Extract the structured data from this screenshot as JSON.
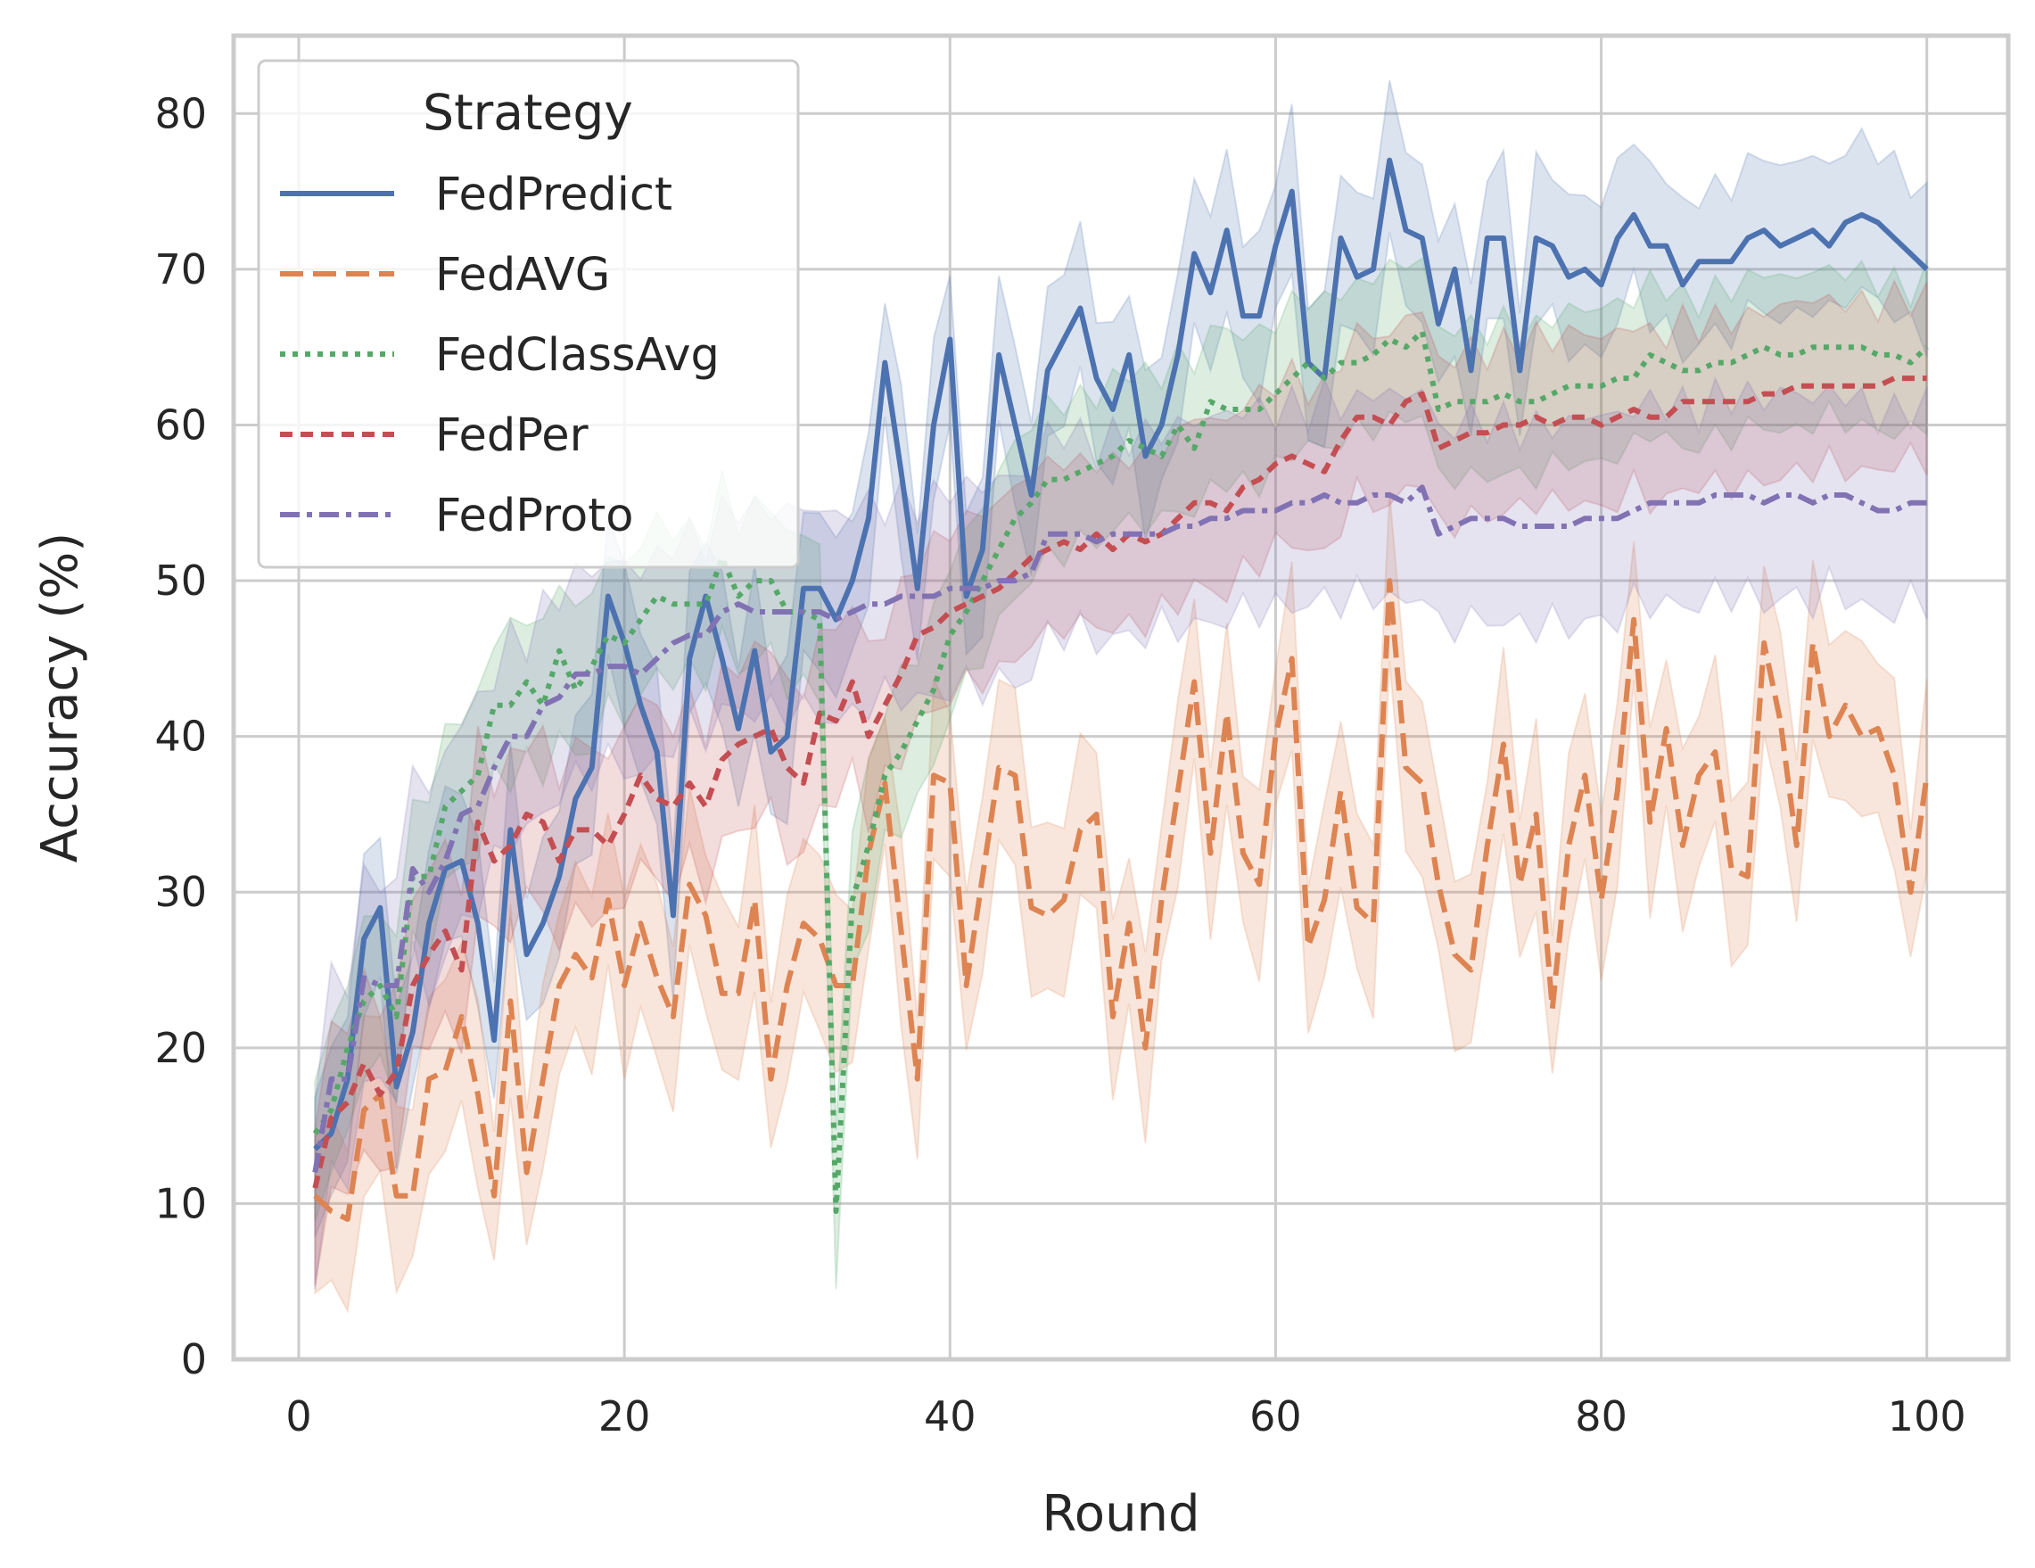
{
  "chart_data": {
    "type": "line",
    "title": "",
    "xlabel": "Round",
    "ylabel": "Accuracy (%)",
    "xlim": [
      -4,
      105
    ],
    "ylim": [
      0,
      85
    ],
    "xticks": [
      0,
      20,
      40,
      60,
      80,
      100
    ],
    "yticks": [
      0,
      10,
      20,
      30,
      40,
      50,
      60,
      70,
      80
    ],
    "grid": true,
    "legend": {
      "title": "Strategy",
      "placement": "top-left"
    },
    "series": [
      {
        "name": "FedPredict",
        "color": "#4c72b0",
        "dash": "solid",
        "band": 4.5,
        "x": [
          1,
          2,
          3,
          4,
          5,
          6,
          7,
          8,
          9,
          10,
          11,
          12,
          13,
          14,
          15,
          16,
          17,
          18,
          19,
          20,
          21,
          22,
          23,
          24,
          25,
          26,
          27,
          28,
          29,
          30,
          31,
          32,
          33,
          34,
          35,
          36,
          37,
          38,
          39,
          40,
          41,
          42,
          43,
          44,
          45,
          46,
          47,
          48,
          49,
          50,
          51,
          52,
          53,
          54,
          55,
          56,
          57,
          58,
          59,
          60,
          61,
          62,
          63,
          64,
          65,
          66,
          67,
          68,
          69,
          70,
          71,
          72,
          73,
          74,
          75,
          76,
          77,
          78,
          79,
          80,
          81,
          82,
          83,
          84,
          85,
          86,
          87,
          88,
          89,
          90,
          91,
          92,
          93,
          94,
          95,
          96,
          97,
          98,
          99,
          100
        ],
        "values": [
          13.5,
          14.5,
          18,
          27,
          29,
          17.5,
          21,
          28,
          31.5,
          32,
          28,
          20.5,
          34,
          26,
          28,
          31,
          36,
          38,
          49,
          46,
          42,
          39,
          28.5,
          45,
          49,
          45,
          40.5,
          45.5,
          39,
          40,
          49.5,
          49.5,
          47.5,
          50,
          54,
          64,
          57,
          49.5,
          60,
          65.5,
          49,
          52,
          64.5,
          60,
          55.5,
          63.5,
          65.5,
          67.5,
          63,
          61,
          64.5,
          58,
          60,
          64.5,
          71,
          68.5,
          72.5,
          67,
          67,
          71.5,
          75,
          64,
          63,
          72,
          69.5,
          70,
          77,
          72.5,
          72,
          66.5,
          70,
          63.5,
          72,
          72,
          63.5,
          72,
          71.5,
          69.5,
          70,
          69,
          72,
          73.5,
          71.5,
          71.5,
          69,
          70.5,
          70.5,
          70.5,
          72,
          72.5,
          71.5,
          72,
          72.5,
          71.5,
          73,
          73.5,
          73,
          72,
          71,
          70
        ]
      },
      {
        "name": "FedAVG",
        "color": "#dd8452",
        "dash": "long-dash",
        "band": 5,
        "x": [
          1,
          2,
          3,
          4,
          5,
          6,
          7,
          8,
          9,
          10,
          11,
          12,
          13,
          14,
          15,
          16,
          17,
          18,
          19,
          20,
          21,
          22,
          23,
          24,
          25,
          26,
          27,
          28,
          29,
          30,
          31,
          32,
          33,
          34,
          35,
          36,
          37,
          38,
          39,
          40,
          41,
          42,
          43,
          44,
          45,
          46,
          47,
          48,
          49,
          50,
          51,
          52,
          53,
          54,
          55,
          56,
          57,
          58,
          59,
          60,
          61,
          62,
          63,
          64,
          65,
          66,
          67,
          68,
          69,
          70,
          71,
          72,
          73,
          74,
          75,
          76,
          77,
          78,
          79,
          80,
          81,
          82,
          83,
          84,
          85,
          86,
          87,
          88,
          89,
          90,
          91,
          92,
          93,
          94,
          95,
          96,
          97,
          98,
          99,
          100
        ],
        "values": [
          10.5,
          9.5,
          9,
          16,
          17,
          10.5,
          10.5,
          18,
          18.5,
          22,
          17,
          10.5,
          23,
          12,
          18,
          24,
          26,
          24.5,
          29.5,
          24,
          28,
          24.5,
          22,
          30.5,
          28.5,
          23.5,
          23.5,
          29.5,
          18,
          24,
          28,
          27,
          24,
          24,
          32.5,
          37,
          27.5,
          18,
          37.5,
          37,
          24,
          31,
          38,
          37.5,
          29,
          28.5,
          29.5,
          34,
          35,
          22,
          28,
          20,
          29.5,
          36.5,
          43.5,
          32.5,
          41.5,
          32.5,
          30.5,
          40,
          45,
          26.5,
          29.5,
          36.5,
          29,
          28,
          50,
          38,
          37,
          30.5,
          26,
          25,
          33,
          39.5,
          30.5,
          35,
          22.5,
          33,
          37.5,
          29.5,
          36.5,
          47.5,
          34.5,
          40.5,
          33,
          37.5,
          39,
          31.5,
          31,
          46,
          41,
          33,
          46,
          40,
          42,
          40,
          40.5,
          37.5,
          30,
          37.5
        ]
      },
      {
        "name": "FedClassAvg",
        "color": "#55a868",
        "dash": "dotted",
        "band": 4.5,
        "x": [
          1,
          2,
          3,
          4,
          5,
          6,
          7,
          8,
          9,
          10,
          11,
          12,
          13,
          14,
          15,
          16,
          17,
          18,
          19,
          20,
          21,
          22,
          23,
          24,
          25,
          26,
          27,
          28,
          29,
          30,
          31,
          32,
          33,
          34,
          35,
          36,
          37,
          38,
          39,
          40,
          41,
          42,
          43,
          44,
          45,
          46,
          47,
          48,
          49,
          50,
          51,
          52,
          53,
          54,
          55,
          56,
          57,
          58,
          59,
          60,
          61,
          62,
          63,
          64,
          65,
          66,
          67,
          68,
          69,
          70,
          71,
          72,
          73,
          74,
          75,
          76,
          77,
          78,
          79,
          80,
          81,
          82,
          83,
          84,
          85,
          86,
          87,
          88,
          89,
          90,
          91,
          92,
          93,
          94,
          95,
          96,
          97,
          98,
          99,
          100
        ],
        "values": [
          14.5,
          16,
          20,
          23,
          24,
          22,
          31,
          31,
          35.5,
          36.5,
          37.5,
          42,
          42,
          43.5,
          42,
          45.5,
          43,
          44.5,
          46.5,
          46,
          47.5,
          49,
          48.5,
          48.5,
          48.5,
          51.5,
          49,
          50,
          50,
          48,
          48,
          47.5,
          9.5,
          29.5,
          33,
          37.5,
          39,
          41,
          43,
          46.5,
          48,
          50,
          52,
          54,
          55,
          56.5,
          56.5,
          57,
          57.5,
          58,
          59,
          58.5,
          58,
          60,
          58.5,
          61.5,
          61,
          61,
          61,
          62,
          63,
          64,
          63,
          64,
          64,
          64.5,
          65.5,
          65,
          66,
          61,
          61.5,
          61.5,
          61.5,
          62,
          61.5,
          61.5,
          62,
          62.5,
          62.5,
          62.5,
          63,
          63,
          64.5,
          64,
          63.5,
          63.5,
          64,
          64,
          64.5,
          65,
          64.5,
          64.5,
          65,
          65,
          65,
          65,
          64.5,
          64.5,
          64,
          65
        ]
      },
      {
        "name": "FedPer",
        "color": "#c44e52",
        "dash": "short-dash",
        "band": 5,
        "x": [
          1,
          2,
          3,
          4,
          5,
          6,
          7,
          8,
          9,
          10,
          11,
          12,
          13,
          14,
          15,
          16,
          17,
          18,
          19,
          20,
          21,
          22,
          23,
          24,
          25,
          26,
          27,
          28,
          29,
          30,
          31,
          32,
          33,
          34,
          35,
          36,
          37,
          38,
          39,
          40,
          41,
          42,
          43,
          44,
          45,
          46,
          47,
          48,
          49,
          50,
          51,
          52,
          53,
          54,
          55,
          56,
          57,
          58,
          59,
          60,
          61,
          62,
          63,
          64,
          65,
          66,
          67,
          68,
          69,
          70,
          71,
          72,
          73,
          74,
          75,
          76,
          77,
          78,
          79,
          80,
          81,
          82,
          83,
          84,
          85,
          86,
          87,
          88,
          89,
          90,
          91,
          92,
          93,
          94,
          95,
          96,
          97,
          98,
          99,
          100
        ],
        "values": [
          11,
          15.5,
          16.5,
          19,
          17,
          18.5,
          24,
          26,
          27.5,
          25,
          34.5,
          32,
          33,
          35,
          34.5,
          32,
          34,
          34,
          33,
          35,
          37.5,
          36,
          35.5,
          37,
          35.5,
          38.5,
          39.5,
          40,
          40.5,
          38,
          37,
          41.5,
          41,
          43.5,
          40,
          42,
          44,
          46.5,
          47,
          48,
          48.5,
          49,
          49.5,
          50.5,
          51.5,
          52,
          52.5,
          52,
          53,
          52,
          53,
          52.5,
          53,
          54,
          55,
          55,
          54.5,
          56,
          56.5,
          57.5,
          58,
          57.5,
          57,
          59,
          60.5,
          60.5,
          60,
          61.5,
          62,
          58.5,
          59,
          59.5,
          59.5,
          60,
          60,
          60.5,
          60,
          60.5,
          60.5,
          60,
          60.5,
          61,
          60.5,
          60.5,
          61.5,
          61.5,
          61.5,
          61.5,
          61.5,
          62,
          62,
          62.5,
          62.5,
          62.5,
          62.5,
          62.5,
          62.5,
          63,
          63,
          63
        ]
      },
      {
        "name": "FedProto",
        "color": "#8172b3",
        "dash": "dash-dot",
        "band": 6,
        "x": [
          1,
          2,
          3,
          4,
          5,
          6,
          7,
          8,
          9,
          10,
          11,
          12,
          13,
          14,
          15,
          16,
          17,
          18,
          19,
          20,
          21,
          22,
          23,
          24,
          25,
          26,
          27,
          28,
          29,
          30,
          31,
          32,
          33,
          34,
          35,
          36,
          37,
          38,
          39,
          40,
          41,
          42,
          43,
          44,
          45,
          46,
          47,
          48,
          49,
          50,
          51,
          52,
          53,
          54,
          55,
          56,
          57,
          58,
          59,
          60,
          61,
          62,
          63,
          64,
          65,
          66,
          67,
          68,
          69,
          70,
          71,
          72,
          73,
          74,
          75,
          76,
          77,
          78,
          79,
          80,
          81,
          82,
          83,
          84,
          85,
          86,
          87,
          88,
          89,
          90,
          91,
          92,
          93,
          94,
          95,
          96,
          97,
          98,
          99,
          100
        ],
        "values": [
          12,
          18,
          18,
          24.5,
          24,
          24,
          31.5,
          30,
          32,
          35,
          35.5,
          38,
          40,
          40,
          42,
          42.5,
          44,
          44,
          44.5,
          44.5,
          44,
          45,
          46,
          46.5,
          46.5,
          48,
          48.5,
          48,
          48,
          48,
          48,
          48,
          47.5,
          48,
          48.5,
          48.5,
          49,
          49,
          49,
          49.5,
          49.5,
          49.5,
          50,
          50,
          50.5,
          53,
          53,
          53,
          52.5,
          53,
          53,
          53,
          53,
          53.5,
          53.5,
          54,
          54,
          54.5,
          54.5,
          54.5,
          55,
          55,
          55.5,
          55,
          55,
          55.5,
          55.5,
          55,
          56,
          53,
          53.5,
          54,
          54,
          54,
          53.5,
          53.5,
          53.5,
          53.5,
          54,
          54,
          54,
          54.5,
          55,
          55,
          55,
          55,
          55.5,
          55.5,
          55.5,
          55,
          55.5,
          55.5,
          55,
          55.5,
          55.5,
          55,
          54.5,
          54.5,
          55,
          55
        ]
      }
    ]
  }
}
